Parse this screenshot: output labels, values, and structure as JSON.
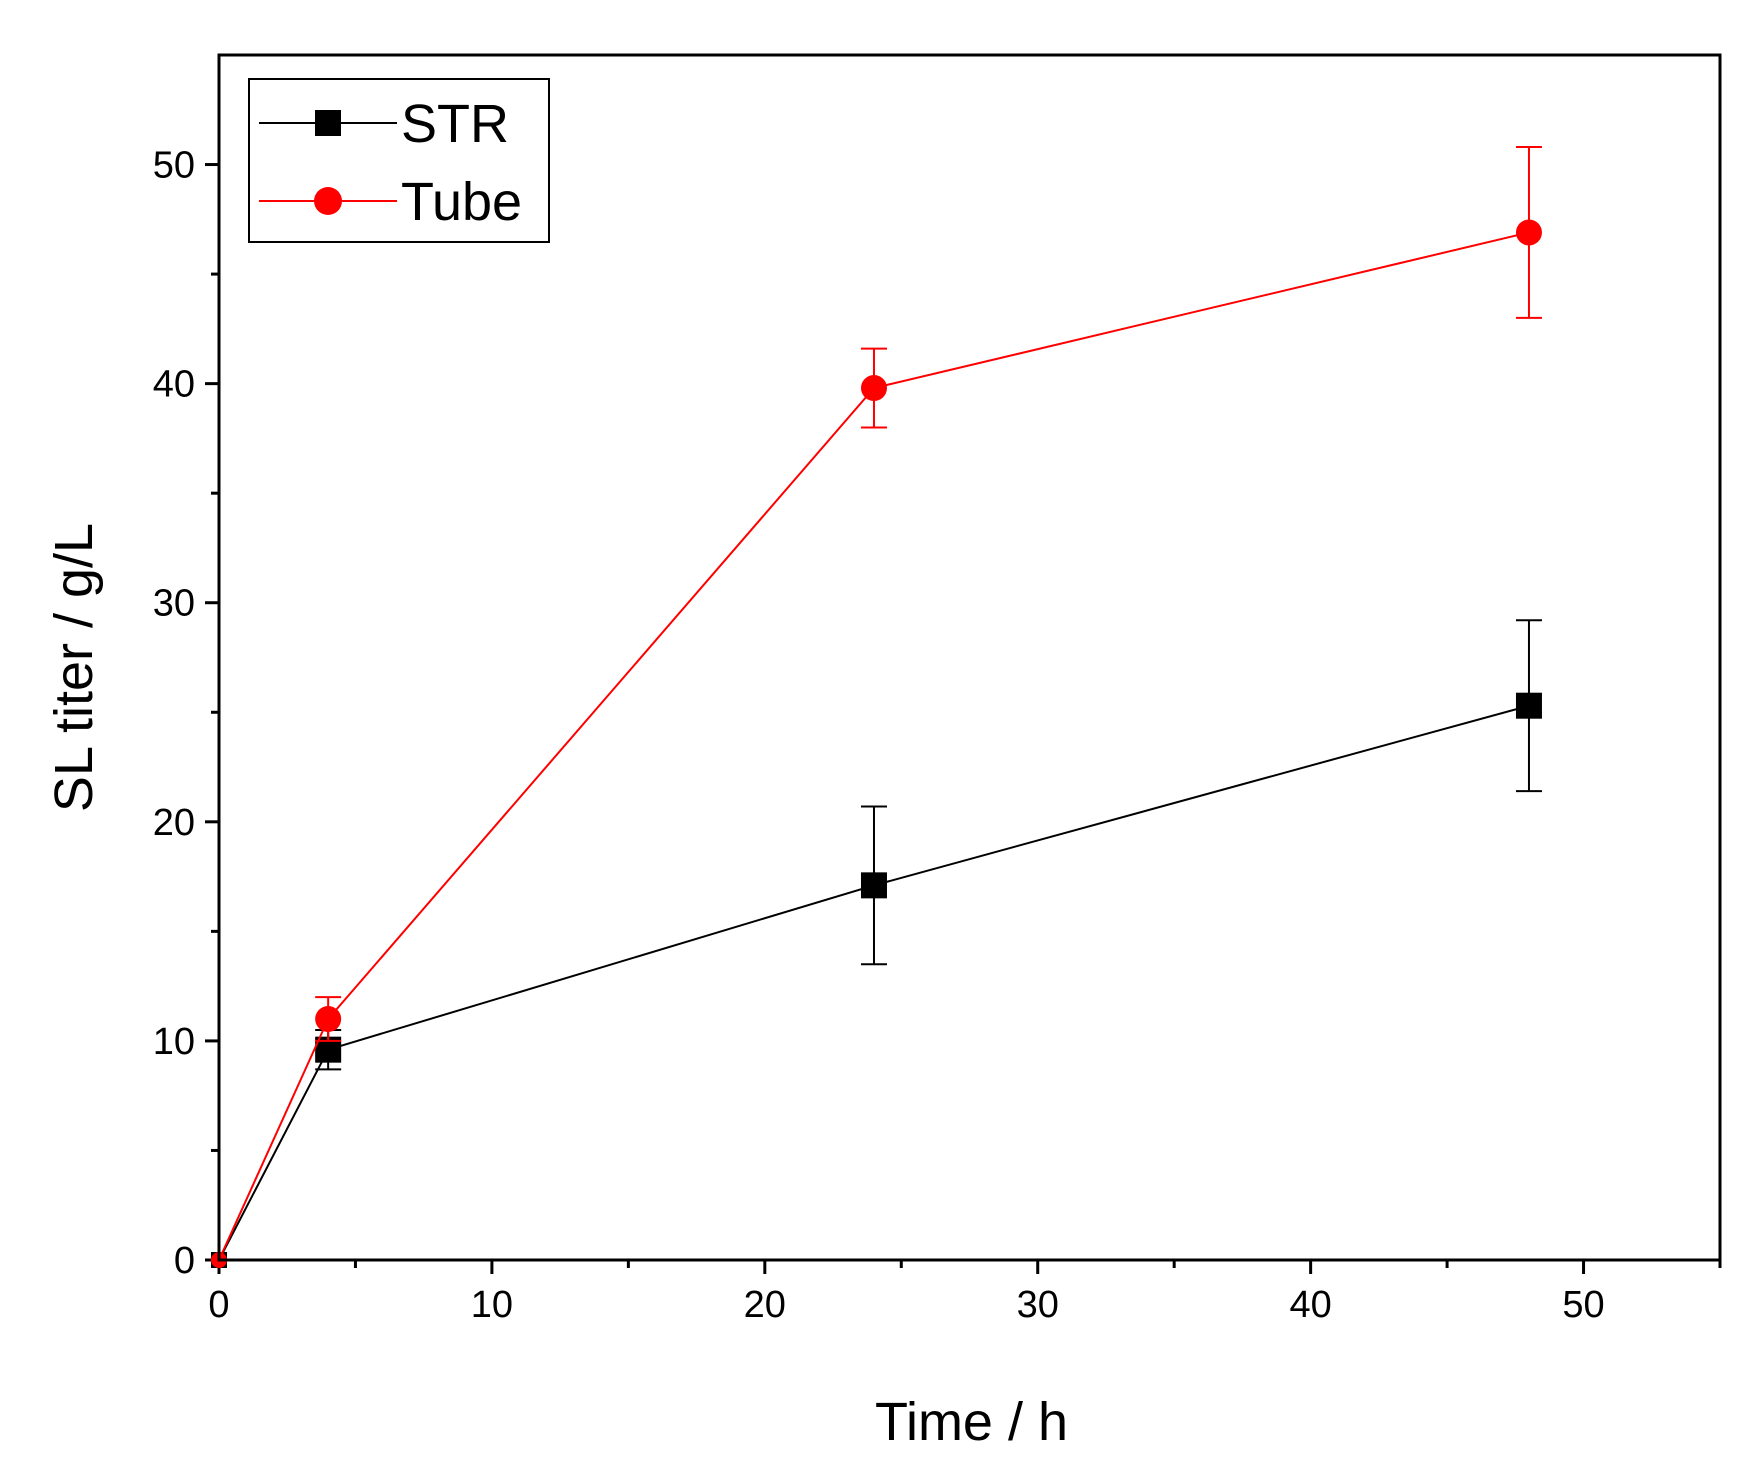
{
  "chart_data": {
    "type": "line",
    "title": "",
    "xlabel": "Time / h",
    "ylabel": "SL titer / g/L",
    "xlim": [
      0,
      55
    ],
    "ylim": [
      0,
      55
    ],
    "xticks": [
      0,
      10,
      20,
      30,
      40,
      50
    ],
    "yticks": [
      0,
      10,
      20,
      30,
      40,
      50
    ],
    "xminor": [
      5,
      15,
      25,
      35,
      45,
      55
    ],
    "yminor": [
      5,
      15,
      25,
      35,
      45
    ],
    "grid": false,
    "legend_position": "top-left",
    "series": [
      {
        "name": "STR",
        "color": "#000000",
        "marker": "square",
        "x": [
          0,
          4,
          24,
          48
        ],
        "y": [
          0,
          9.6,
          17.1,
          25.3
        ],
        "err": [
          0,
          0.9,
          3.6,
          3.9
        ]
      },
      {
        "name": "Tube",
        "color": "#ff0000",
        "marker": "circle",
        "x": [
          0,
          4,
          24,
          48
        ],
        "y": [
          0,
          11.0,
          39.8,
          46.9
        ],
        "err": [
          0,
          1.0,
          1.8,
          3.9
        ]
      }
    ]
  }
}
